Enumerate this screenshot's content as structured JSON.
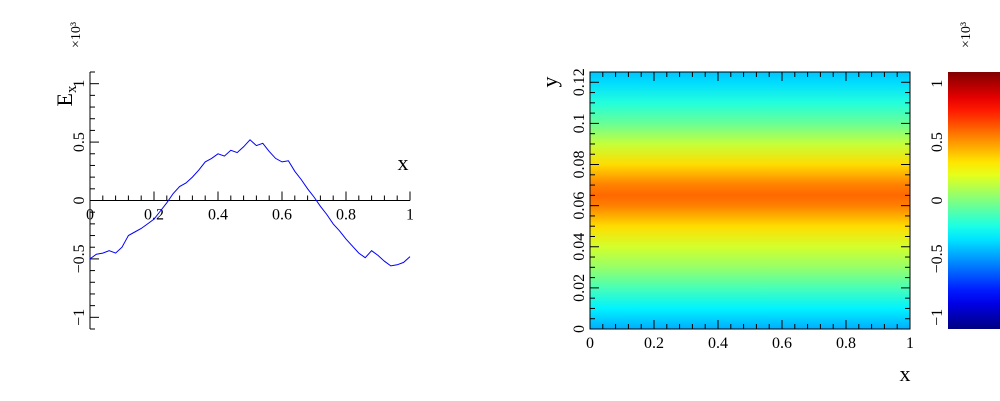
{
  "chart_data": [
    {
      "type": "line",
      "xlabel": "x",
      "ylabel": "E",
      "ylabel_sub": "x",
      "exponent_label": "×10³",
      "xlim": [
        0,
        1
      ],
      "ylim": [
        -1.1,
        1.1
      ],
      "x_ticks": [
        "0",
        "0.2",
        "0.4",
        "0.6",
        "0.8",
        "1"
      ],
      "y_ticks": [
        "−1",
        "−0.5",
        "0",
        "0.5",
        "1"
      ],
      "series_color": "#0000ff",
      "x": [
        0.0,
        0.02,
        0.04,
        0.06,
        0.08,
        0.1,
        0.12,
        0.14,
        0.16,
        0.18,
        0.2,
        0.22,
        0.24,
        0.26,
        0.28,
        0.3,
        0.32,
        0.34,
        0.36,
        0.38,
        0.4,
        0.42,
        0.44,
        0.46,
        0.48,
        0.5,
        0.52,
        0.54,
        0.56,
        0.58,
        0.6,
        0.62,
        0.64,
        0.66,
        0.68,
        0.7,
        0.72,
        0.74,
        0.76,
        0.78,
        0.8,
        0.82,
        0.84,
        0.86,
        0.88,
        0.9,
        0.92,
        0.94,
        0.96,
        0.98,
        1.0
      ],
      "y": [
        -0.5,
        -0.46,
        -0.45,
        -0.43,
        -0.45,
        -0.4,
        -0.3,
        -0.27,
        -0.24,
        -0.2,
        -0.16,
        -0.09,
        -0.02,
        0.06,
        0.12,
        0.15,
        0.2,
        0.26,
        0.33,
        0.36,
        0.4,
        0.38,
        0.43,
        0.41,
        0.46,
        0.52,
        0.47,
        0.49,
        0.42,
        0.36,
        0.33,
        0.34,
        0.25,
        0.18,
        0.1,
        0.03,
        -0.05,
        -0.12,
        -0.2,
        -0.26,
        -0.33,
        -0.39,
        -0.45,
        -0.49,
        -0.43,
        -0.47,
        -0.52,
        -0.56,
        -0.55,
        -0.53,
        -0.48
      ]
    },
    {
      "type": "heatmap",
      "xlabel": "x",
      "ylabel": "y",
      "exponent_label": "×10³",
      "xlim": [
        0,
        1
      ],
      "ylim": [
        0,
        0.125
      ],
      "x_ticks": [
        "0",
        "0.2",
        "0.4",
        "0.6",
        "0.8",
        "1"
      ],
      "y_ticks": [
        "0",
        "0.02",
        "0.04",
        "0.06",
        "0.08",
        "0.1",
        "0.12"
      ],
      "colorbar_ticks": [
        "−1",
        "−0.5",
        "0",
        "0.5",
        "1"
      ],
      "zlim": [
        -1.1,
        1.1
      ],
      "y_profile": [
        {
          "y": 0.0,
          "value": -0.45
        },
        {
          "y": 0.01,
          "value": -0.3
        },
        {
          "y": 0.02,
          "value": -0.12
        },
        {
          "y": 0.03,
          "value": 0.05
        },
        {
          "y": 0.04,
          "value": 0.18
        },
        {
          "y": 0.05,
          "value": 0.35
        },
        {
          "y": 0.06,
          "value": 0.55
        },
        {
          "y": 0.065,
          "value": 0.6
        },
        {
          "y": 0.07,
          "value": 0.55
        },
        {
          "y": 0.08,
          "value": 0.35
        },
        {
          "y": 0.09,
          "value": 0.15
        },
        {
          "y": 0.1,
          "value": -0.05
        },
        {
          "y": 0.11,
          "value": -0.2
        },
        {
          "y": 0.12,
          "value": -0.35
        },
        {
          "y": 0.125,
          "value": -0.4
        }
      ]
    }
  ]
}
